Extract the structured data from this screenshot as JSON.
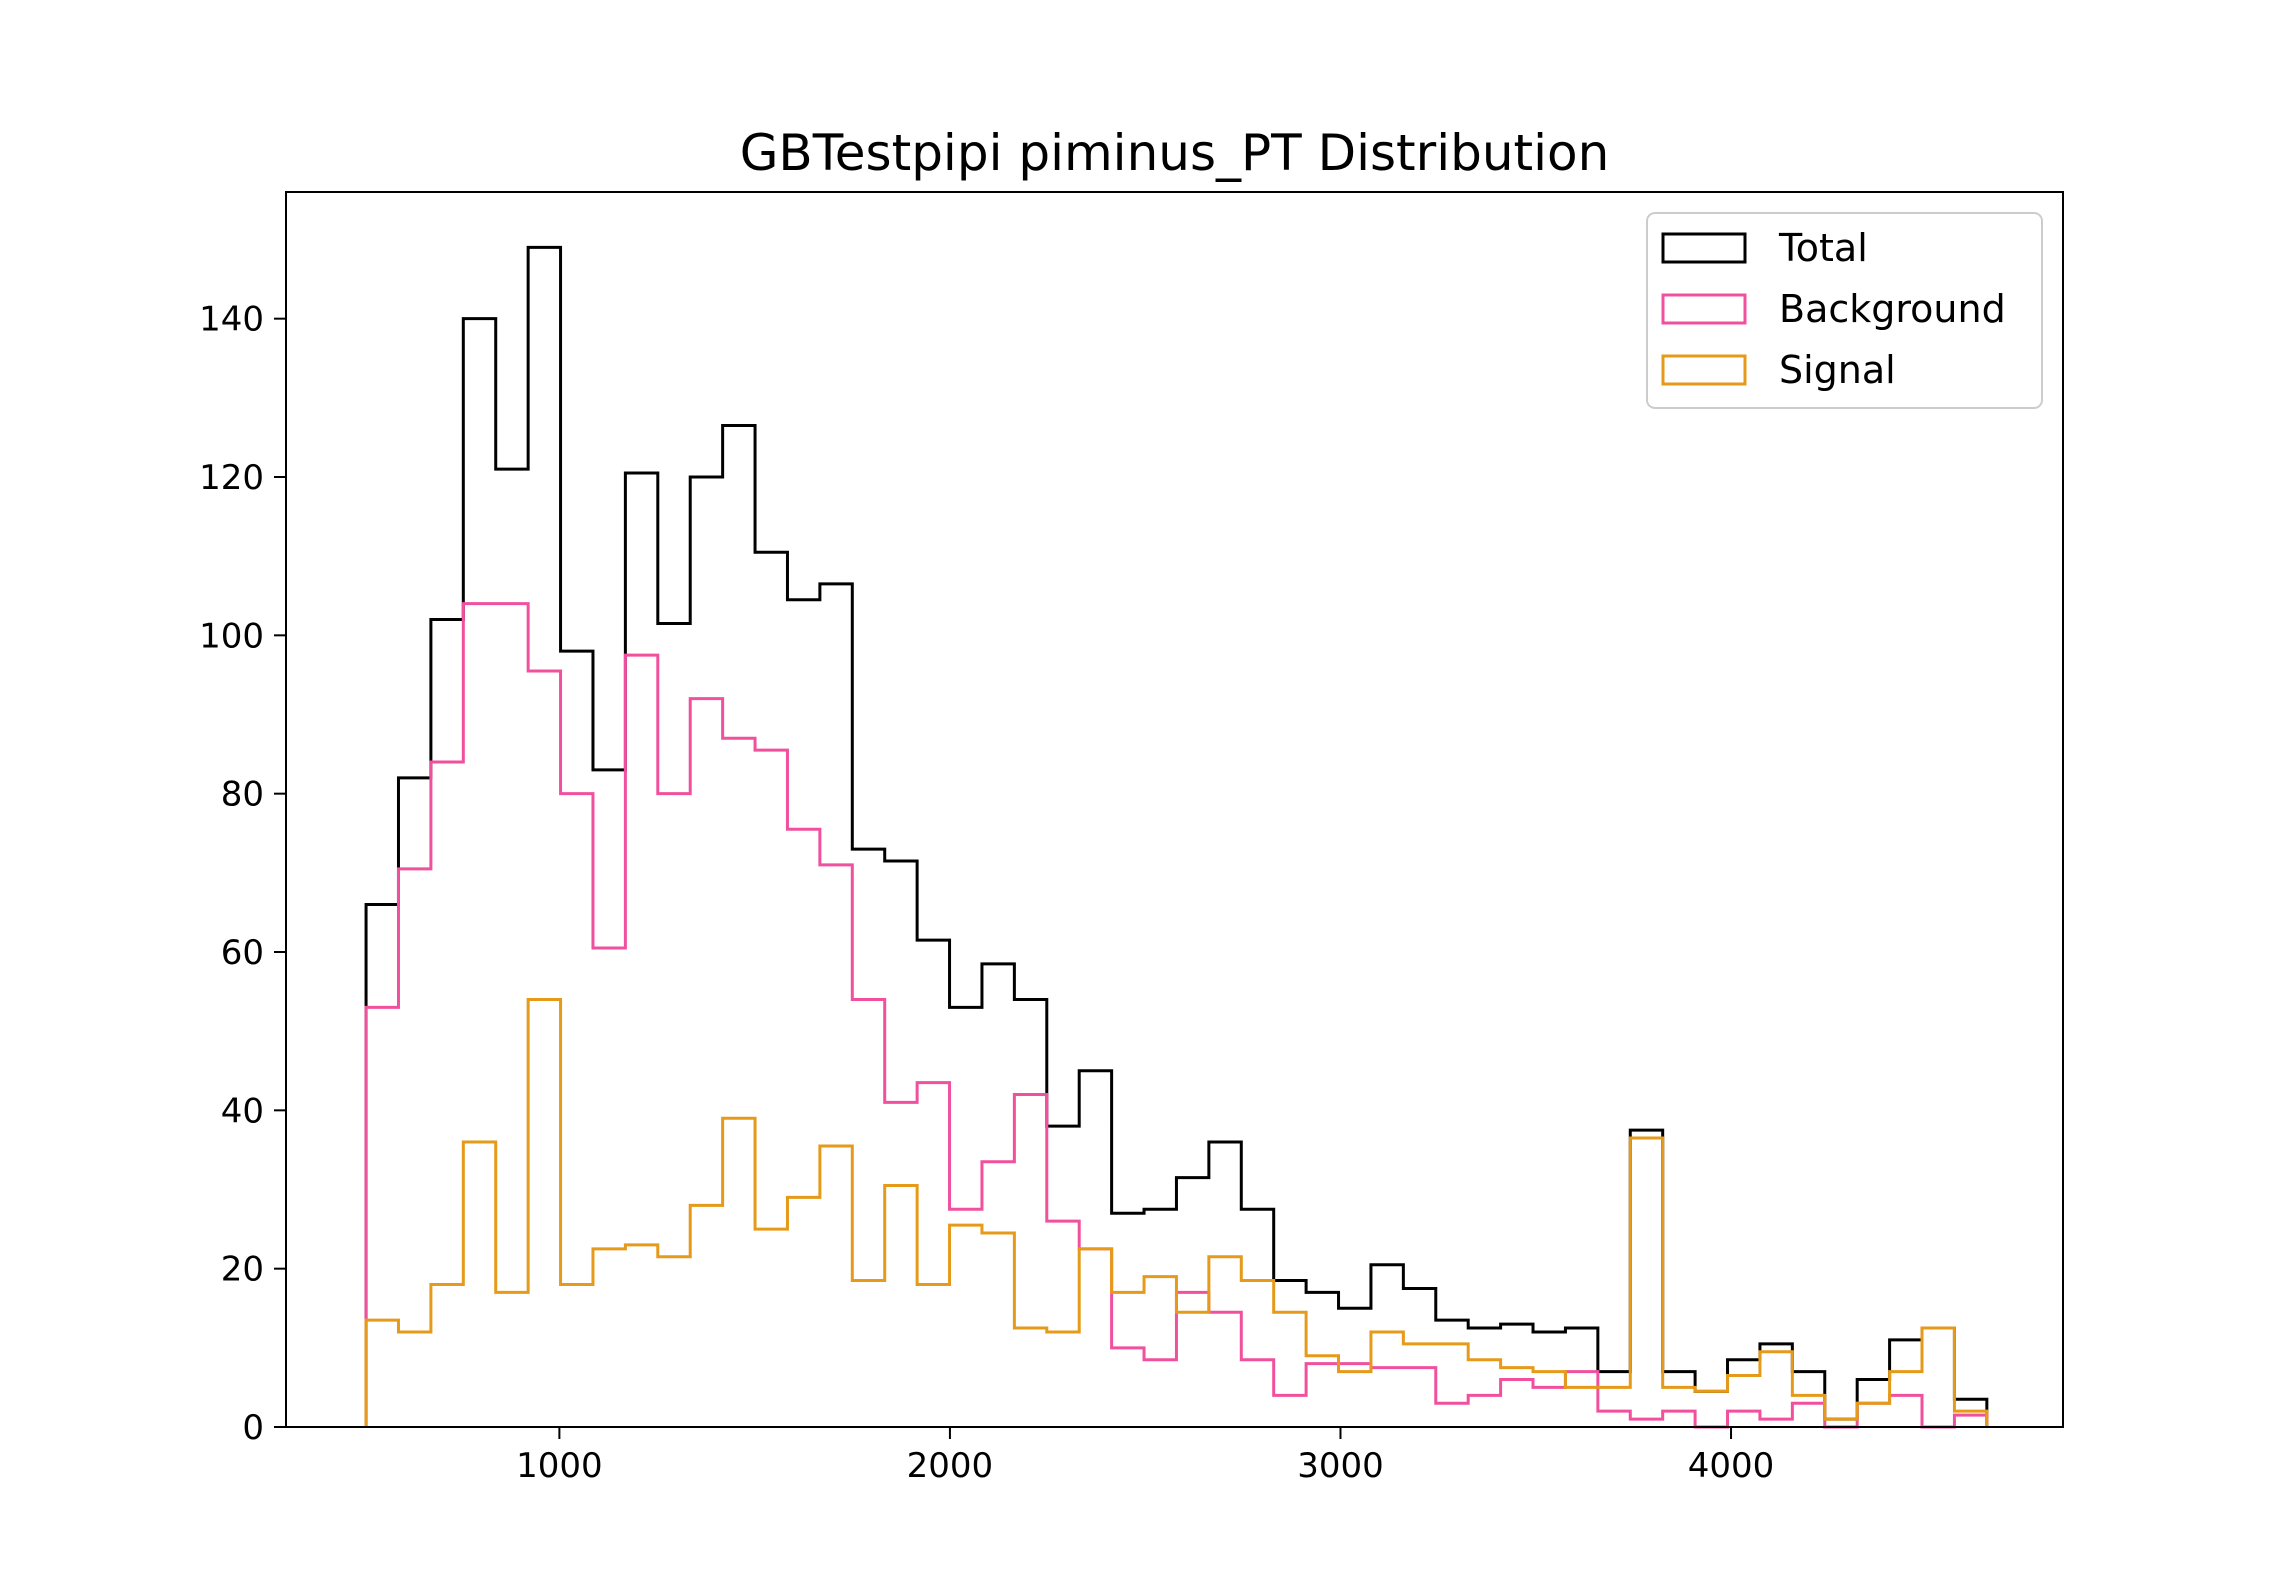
{
  "chart_data": {
    "type": "histogram",
    "title": "GBTestpipi piminus_PT Distribution",
    "xlabel": "",
    "ylabel": "",
    "xlim": [
      300,
      4850
    ],
    "ylim": [
      0,
      156
    ],
    "xticks": [
      1000,
      2000,
      3000,
      4000
    ],
    "yticks": [
      0,
      20,
      40,
      60,
      80,
      100,
      120,
      140
    ],
    "grid": false,
    "legend_position": "top-right",
    "bin_edges": [
      505,
      588,
      671,
      754,
      837,
      920,
      1003,
      1086,
      1169,
      1252,
      1335,
      1418,
      1501,
      1584,
      1667,
      1750,
      1833,
      1916,
      1999,
      2082,
      2165,
      2248,
      2331,
      2414,
      2497,
      2580,
      2663,
      2746,
      2829,
      2912,
      2995,
      3078,
      3161,
      3244,
      3327,
      3410,
      3493,
      3576,
      3659,
      3742,
      3825,
      3908,
      3991,
      4074,
      4157,
      4240,
      4323,
      4406,
      4489,
      4572,
      4655
    ],
    "series": [
      {
        "name": "Total",
        "color": "#000000",
        "values": [
          66,
          82,
          102,
          140,
          121,
          149,
          98,
          83,
          120.5,
          101.5,
          120,
          126.5,
          110.5,
          104.5,
          106.5,
          73,
          71.5,
          61.5,
          53,
          58.5,
          54,
          38,
          45,
          27,
          27.5,
          31.5,
          36,
          27.5,
          18.5,
          17,
          15,
          20.5,
          17.5,
          13.5,
          12.5,
          13,
          12,
          12.5,
          7,
          37.5,
          7,
          4.5,
          8.5,
          10.5,
          7,
          1,
          6,
          11,
          12.5,
          3.5
        ]
      },
      {
        "name": "Background",
        "color": "#f0509e",
        "values": [
          53,
          70.5,
          84,
          104,
          104,
          95.5,
          80,
          60.5,
          97.5,
          80,
          92,
          87,
          85.5,
          75.5,
          71,
          54,
          41,
          43.5,
          27.5,
          33.5,
          42,
          26,
          22.5,
          10,
          8.5,
          17,
          14.5,
          8.5,
          4,
          8,
          8,
          7.5,
          7.5,
          3,
          4,
          6,
          5,
          7,
          2,
          1,
          2,
          0,
          2,
          1,
          3,
          0,
          3,
          4,
          0,
          1.5
        ]
      },
      {
        "name": "Signal",
        "color": "#e69a1a",
        "values": [
          13.5,
          12,
          18,
          36,
          17,
          54,
          18,
          22.5,
          23,
          21.5,
          28,
          39,
          25,
          29,
          35.5,
          18.5,
          30.5,
          18,
          25.5,
          24.5,
          12.5,
          12,
          22.5,
          17,
          19,
          14.5,
          21.5,
          18.5,
          14.5,
          9,
          7,
          12,
          10.5,
          10.5,
          8.5,
          7.5,
          7,
          5,
          5,
          36.5,
          5,
          4.5,
          6.5,
          9.5,
          4,
          1,
          3,
          7,
          12.5,
          2
        ]
      }
    ],
    "legend": [
      "Total",
      "Background",
      "Signal"
    ]
  }
}
